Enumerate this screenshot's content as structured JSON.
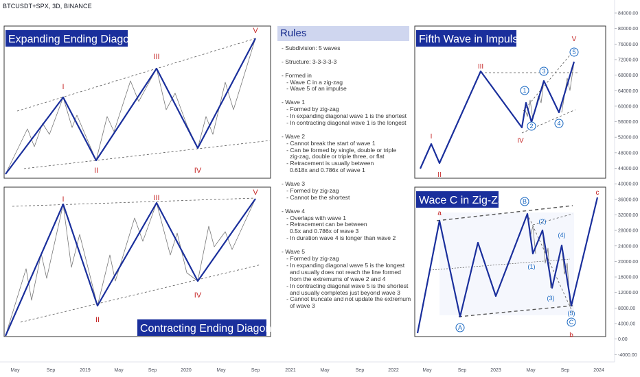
{
  "symbol_title": "BTCUSDT+SPX, 3D, BINANCE",
  "colors": {
    "wave": "#1a2f9c",
    "thin": "#777777",
    "label_red": "#c62828",
    "label_blue": "#1565c0",
    "title_bg": "#1a2f9c",
    "rules_bg": "#cfd6ef"
  },
  "panels": {
    "expanding": {
      "title": "Expanding Ending Diagonal",
      "labels": [
        "I",
        "II",
        "III",
        "IV",
        "V"
      ]
    },
    "contracting": {
      "title": "Contracting Ending Diagonal",
      "labels": [
        "I",
        "II",
        "III",
        "IV",
        "V"
      ]
    },
    "fifth": {
      "title": "Fifth Wave in Impulse",
      "labels": [
        "I",
        "II",
        "III",
        "IV",
        "V"
      ],
      "sub_labels": [
        "1",
        "2",
        "3",
        "4",
        "5"
      ]
    },
    "wavec": {
      "title": "Wace C in Zig-Zag",
      "labels": [
        "a",
        "b",
        "c"
      ],
      "circle_labels": [
        "A",
        "B",
        "C"
      ],
      "paren_labels": [
        "(1)",
        "(2)",
        "(3)",
        "(4)",
        "(5)"
      ]
    }
  },
  "rules": {
    "title": "Rules",
    "lines": [
      "- Subdivision: 5 waves",
      "",
      "- Structure: 3-3-3-3-3",
      "",
      "- Formed in",
      "   - Wave C in a zig-zag",
      "   - Wave 5 of an impulse",
      "",
      "- Wave 1",
      "   - Formed by zig-zag",
      "   - In expanding diagonal wave 1 is the shortest",
      "   - In contracting diagonal wave 1 is the longest",
      "",
      "- Wave 2",
      "   - Cannot break the start of wave 1",
      "   - Can be formed by single, double or triple",
      "     zig-zag, double or triple three, or flat",
      "   - Retracement is usually between",
      "     0.618x and 0.786x of wave 1",
      "",
      "- Wave 3",
      "   - Formed by zig-zag",
      "   - Cannot be the shortest",
      "",
      "- Wave 4",
      "   - Overlaps with wave 1",
      "   - Retracement can be between",
      "     0.5x and 0.786x of wave 3",
      "   - In duration wave 4 is longer than wave 2",
      "",
      "- Wave 5",
      "   - Formed by zig-zag",
      "   - In expanding diagonal wave 5 is the longest",
      "     and usually does not reach the line formed",
      "     from the extremums of wave 2 and 4",
      "   - In contracting diagonal wave 5 is the shortest",
      "     and usually completes just beyond wave 3",
      "   - Cannot truncate and not update the extremum",
      "     of wave 3"
    ]
  },
  "chart_data": {
    "type": "line",
    "title": "BTCUSDT+SPX, 3D, BINANCE",
    "x_ticks": [
      "May",
      "Sep",
      "2019",
      "May",
      "Sep",
      "2020",
      "May",
      "Sep",
      "2021",
      "May",
      "Sep",
      "2022",
      "May",
      "Sep",
      "2023",
      "May",
      "Sep",
      "2024"
    ],
    "y_ticks": [
      "84000.00",
      "80000.00",
      "76000.00",
      "72000.00",
      "68000.00",
      "64000.00",
      "60000.00",
      "56000.00",
      "52000.00",
      "48000.00",
      "44000.00",
      "40000.00",
      "36000.00",
      "32000.00",
      "28000.00",
      "24000.00",
      "20000.00",
      "16000.00",
      "12000.00",
      "8000.00",
      "4000.00",
      "0.00",
      "-4000.00"
    ],
    "y_range": [
      -4000,
      84000
    ]
  }
}
